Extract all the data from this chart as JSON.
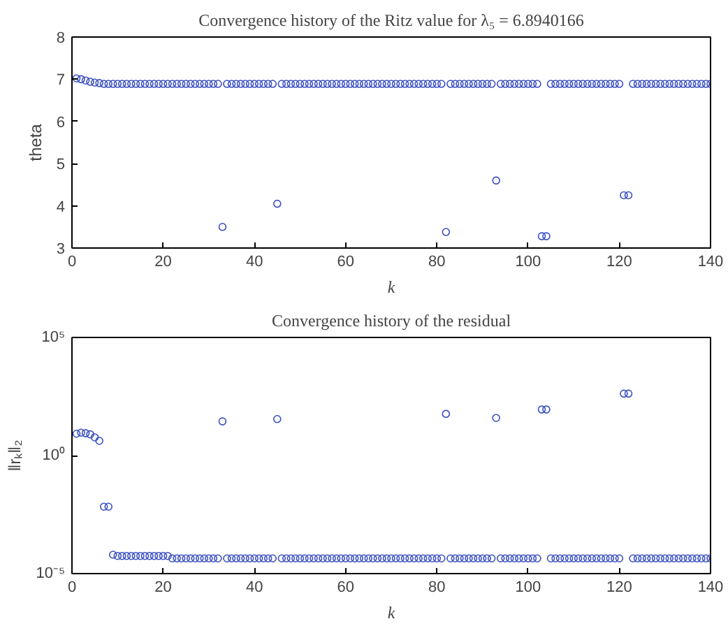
{
  "chart_data": [
    {
      "type": "scatter",
      "title": "Convergence history of the Ritz value for λ₅ = 6.8940166",
      "xlabel": "k",
      "ylabel": "theta",
      "marker": "circle",
      "grid": false,
      "xlim": [
        0,
        140
      ],
      "xticks": [
        0,
        20,
        40,
        60,
        80,
        100,
        120,
        140
      ],
      "ylim": [
        3,
        8
      ],
      "yticks": [
        3,
        4,
        5,
        6,
        7,
        8
      ],
      "series": [
        {
          "color": "#3a4fc0",
          "x": [
            1,
            2,
            3,
            4,
            5,
            6,
            7,
            8,
            9,
            10,
            11,
            12,
            13,
            14,
            15,
            16,
            17,
            18,
            19,
            20,
            21,
            22,
            23,
            24,
            25,
            26,
            27,
            28,
            29,
            30,
            31,
            32,
            33,
            34,
            35,
            36,
            37,
            38,
            39,
            40,
            41,
            42,
            43,
            44,
            45,
            46,
            47,
            48,
            49,
            50,
            51,
            52,
            53,
            54,
            55,
            56,
            57,
            58,
            59,
            60,
            61,
            62,
            63,
            64,
            65,
            66,
            67,
            68,
            69,
            70,
            71,
            72,
            73,
            74,
            75,
            76,
            77,
            78,
            79,
            80,
            81,
            82,
            83,
            84,
            85,
            86,
            87,
            88,
            89,
            90,
            91,
            92,
            93,
            94,
            95,
            96,
            97,
            98,
            99,
            100,
            101,
            102,
            103,
            104,
            105,
            106,
            107,
            108,
            109,
            110,
            111,
            112,
            113,
            114,
            115,
            116,
            117,
            118,
            119,
            120,
            121,
            122,
            123,
            124,
            125,
            126,
            127,
            128,
            129,
            130,
            131,
            132,
            133,
            134,
            135,
            136,
            137,
            138,
            139,
            140
          ],
          "values": [
            7.02,
            7.0,
            6.97,
            6.94,
            6.92,
            6.91,
            6.89,
            6.89,
            6.89,
            6.89,
            6.89,
            6.89,
            6.89,
            6.89,
            6.89,
            6.89,
            6.89,
            6.89,
            6.89,
            6.89,
            6.89,
            6.89,
            6.89,
            6.89,
            6.89,
            6.89,
            6.89,
            6.89,
            6.89,
            6.89,
            6.89,
            6.89,
            3.5,
            6.89,
            6.89,
            6.89,
            6.89,
            6.89,
            6.89,
            6.89,
            6.89,
            6.89,
            6.89,
            6.89,
            4.05,
            6.89,
            6.89,
            6.89,
            6.89,
            6.89,
            6.89,
            6.89,
            6.89,
            6.89,
            6.89,
            6.89,
            6.89,
            6.89,
            6.89,
            6.89,
            6.89,
            6.89,
            6.89,
            6.89,
            6.89,
            6.89,
            6.89,
            6.89,
            6.89,
            6.89,
            6.89,
            6.89,
            6.89,
            6.89,
            6.89,
            6.89,
            6.89,
            6.89,
            6.89,
            6.89,
            6.89,
            3.38,
            6.89,
            6.89,
            6.89,
            6.89,
            6.89,
            6.89,
            6.89,
            6.89,
            6.89,
            6.89,
            4.6,
            6.89,
            6.89,
            6.89,
            6.89,
            6.89,
            6.89,
            6.89,
            6.89,
            6.89,
            3.28,
            3.28,
            6.89,
            6.89,
            6.89,
            6.89,
            6.89,
            6.89,
            6.89,
            6.89,
            6.89,
            6.89,
            6.89,
            6.89,
            6.89,
            6.89,
            6.89,
            6.89,
            4.25,
            4.25,
            6.89,
            6.89,
            6.89,
            6.89,
            6.89,
            6.89,
            6.89,
            6.89,
            6.89,
            6.89,
            6.89,
            6.89,
            6.89,
            6.89,
            6.89,
            6.89,
            6.89,
            6.89
          ]
        }
      ]
    },
    {
      "type": "scatter",
      "title": "Convergence history of the residual",
      "xlabel": "k",
      "ylabel": "‖rₖ‖₂",
      "marker": "circle",
      "grid": false,
      "log": "y",
      "xlim": [
        0,
        140
      ],
      "xticks": [
        0,
        20,
        40,
        60,
        80,
        100,
        120,
        140
      ],
      "ylim": [
        1e-05,
        100000.0
      ],
      "yticks": [
        {
          "value": 1e-05,
          "label": "10⁻⁵"
        },
        {
          "value": 1,
          "label": "10⁰"
        },
        {
          "value": 100000.0,
          "label": "10⁵"
        }
      ],
      "series": [
        {
          "color": "#3a4fc0",
          "x": [
            1,
            2,
            3,
            4,
            5,
            6,
            7,
            8,
            9,
            10,
            11,
            12,
            13,
            14,
            15,
            16,
            17,
            18,
            19,
            20,
            21,
            22,
            23,
            24,
            25,
            26,
            27,
            28,
            29,
            30,
            31,
            32,
            33,
            34,
            35,
            36,
            37,
            38,
            39,
            40,
            41,
            42,
            43,
            44,
            45,
            46,
            47,
            48,
            49,
            50,
            51,
            52,
            53,
            54,
            55,
            56,
            57,
            58,
            59,
            60,
            61,
            62,
            63,
            64,
            65,
            66,
            67,
            68,
            69,
            70,
            71,
            72,
            73,
            74,
            75,
            76,
            77,
            78,
            79,
            80,
            81,
            82,
            83,
            84,
            85,
            86,
            87,
            88,
            89,
            90,
            91,
            92,
            93,
            94,
            95,
            96,
            97,
            98,
            99,
            100,
            101,
            102,
            103,
            104,
            105,
            106,
            107,
            108,
            109,
            110,
            111,
            112,
            113,
            114,
            115,
            116,
            117,
            118,
            119,
            120,
            121,
            122,
            123,
            124,
            125,
            126,
            127,
            128,
            129,
            130,
            131,
            132,
            133,
            134,
            135,
            136,
            137,
            138,
            139,
            140
          ],
          "values": [
            8.4,
            9.3,
            8.8,
            7.9,
            5.9,
            4.2,
            0.0068,
            0.0068,
            6.3e-05,
            5.6e-05,
            5.6e-05,
            5.6e-05,
            5.6e-05,
            5.6e-05,
            5.6e-05,
            5.6e-05,
            5.6e-05,
            5.6e-05,
            5.6e-05,
            5.6e-05,
            5.6e-05,
            4.4e-05,
            4.4e-05,
            4.4e-05,
            4.4e-05,
            4.4e-05,
            4.4e-05,
            4.4e-05,
            4.4e-05,
            4.4e-05,
            4.4e-05,
            4.4e-05,
            28,
            4.4e-05,
            4.4e-05,
            4.4e-05,
            4.4e-05,
            4.4e-05,
            4.4e-05,
            4.4e-05,
            4.4e-05,
            4.4e-05,
            4.4e-05,
            4.4e-05,
            35,
            4.4e-05,
            4.4e-05,
            4.4e-05,
            4.4e-05,
            4.4e-05,
            4.4e-05,
            4.4e-05,
            4.4e-05,
            4.4e-05,
            4.4e-05,
            4.4e-05,
            4.4e-05,
            4.4e-05,
            4.4e-05,
            4.4e-05,
            4.4e-05,
            4.4e-05,
            4.4e-05,
            4.4e-05,
            4.4e-05,
            4.4e-05,
            4.4e-05,
            4.4e-05,
            4.4e-05,
            4.4e-05,
            4.4e-05,
            4.4e-05,
            4.4e-05,
            4.4e-05,
            4.4e-05,
            4.4e-05,
            4.4e-05,
            4.4e-05,
            4.4e-05,
            4.4e-05,
            4.4e-05,
            58,
            4.4e-05,
            4.4e-05,
            4.4e-05,
            4.4e-05,
            4.4e-05,
            4.4e-05,
            4.4e-05,
            4.4e-05,
            4.4e-05,
            4.4e-05,
            39,
            4.4e-05,
            4.4e-05,
            4.4e-05,
            4.4e-05,
            4.4e-05,
            4.4e-05,
            4.4e-05,
            4.4e-05,
            4.4e-05,
            89,
            89,
            4.4e-05,
            4.4e-05,
            4.4e-05,
            4.4e-05,
            4.4e-05,
            4.4e-05,
            4.4e-05,
            4.4e-05,
            4.4e-05,
            4.4e-05,
            4.4e-05,
            4.4e-05,
            4.4e-05,
            4.4e-05,
            4.4e-05,
            4.4e-05,
            420,
            420,
            4.4e-05,
            4.4e-05,
            4.4e-05,
            4.4e-05,
            4.4e-05,
            4.4e-05,
            4.4e-05,
            4.4e-05,
            4.4e-05,
            4.4e-05,
            4.4e-05,
            4.4e-05,
            4.4e-05,
            4.4e-05,
            4.4e-05,
            4.4e-05,
            4.4e-05,
            4.4e-05
          ]
        }
      ]
    }
  ]
}
